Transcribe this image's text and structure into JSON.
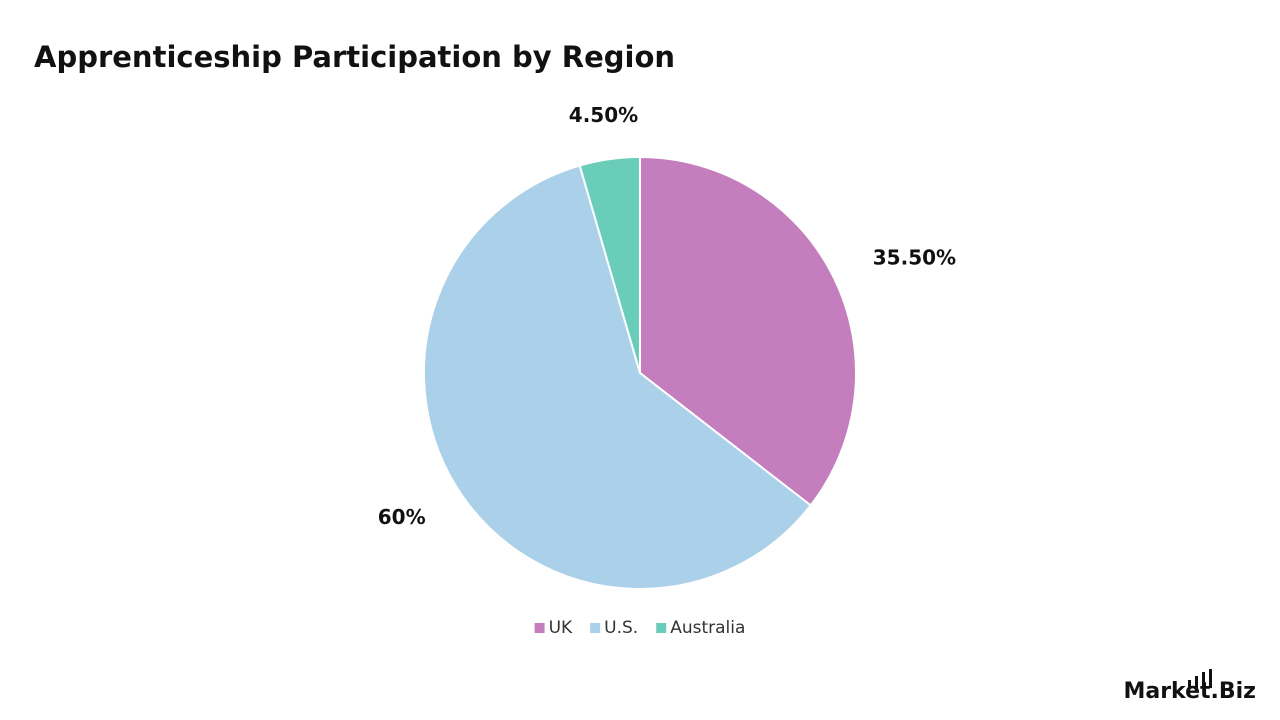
{
  "chart_data": {
    "type": "pie",
    "title": "Apprenticeship Participation by Region",
    "categories": [
      "UK",
      "U.S.",
      "Australia"
    ],
    "values": [
      35.5,
      60,
      4.5
    ],
    "value_labels": [
      "35.50%",
      "60%",
      "4.50%"
    ],
    "colors": [
      "#c47ebe",
      "#aad0ea",
      "#69cdb9"
    ],
    "legend": "bottom"
  },
  "logo": "Market.Biz"
}
